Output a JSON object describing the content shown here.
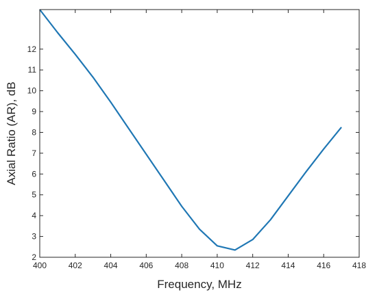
{
  "chart_data": {
    "type": "line",
    "title": "",
    "xlabel": "Frequency, MHz",
    "ylabel": "Axial Ratio (AR), dB",
    "xlim": [
      400,
      418
    ],
    "ylim": [
      2,
      13.9
    ],
    "xticks": [
      400,
      402,
      404,
      406,
      408,
      410,
      412,
      414,
      416,
      418
    ],
    "yticks": [
      2,
      3,
      4,
      5,
      6,
      7,
      8,
      9,
      10,
      11,
      12
    ],
    "grid": false,
    "line_color": "#1f77b4",
    "series": [
      {
        "x": [
          400,
          401,
          402,
          403,
          404,
          405,
          406,
          407,
          408,
          409,
          410,
          411,
          412,
          413,
          414,
          415,
          416,
          417
        ],
        "y": [
          13.9,
          12.8,
          11.75,
          10.65,
          9.45,
          8.2,
          6.95,
          5.7,
          4.45,
          3.35,
          2.55,
          2.35,
          2.85,
          3.8,
          4.95,
          6.1,
          7.2,
          8.25
        ]
      }
    ]
  }
}
